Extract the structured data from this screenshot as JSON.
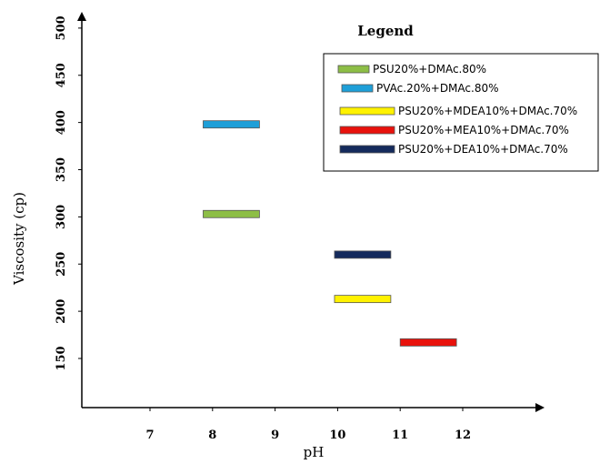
{
  "chart_data": {
    "type": "bar",
    "orientation": "floating-horizontal-segments",
    "xlabel": "pH",
    "ylabel": "Viscosity (cp)",
    "x_ticks": [
      7,
      8,
      9,
      10,
      11,
      12
    ],
    "y_ticks": [
      150,
      200,
      250,
      300,
      350,
      400,
      450,
      500
    ],
    "xlim": [
      5.9,
      13.2
    ],
    "ylim": [
      100,
      515
    ],
    "grid": false,
    "legend": {
      "title": "Legend",
      "placement": "top-right"
    },
    "series": [
      {
        "name": "PSU20%+DMAc.80%",
        "color": "#8DBE46",
        "x_start": 7.85,
        "x_end": 8.75,
        "y": 303
      },
      {
        "name": "PVAc.20%+DMAc.80%",
        "color": "#1E9FD8",
        "x_start": 7.85,
        "x_end": 8.75,
        "y": 398
      },
      {
        "name": "PSU20%+MDEA10%+DMAc.70%",
        "color": "#FFF200",
        "x_start": 9.95,
        "x_end": 10.85,
        "y": 213
      },
      {
        "name": "PSU20%+MEA10%+DMAc.70%",
        "color": "#E8120C",
        "x_start": 11.0,
        "x_end": 11.9,
        "y": 167
      },
      {
        "name": "PSU20%+DEA10%+DMAc.70%",
        "color": "#142A5C",
        "x_start": 9.95,
        "x_end": 10.85,
        "y": 260
      }
    ]
  }
}
